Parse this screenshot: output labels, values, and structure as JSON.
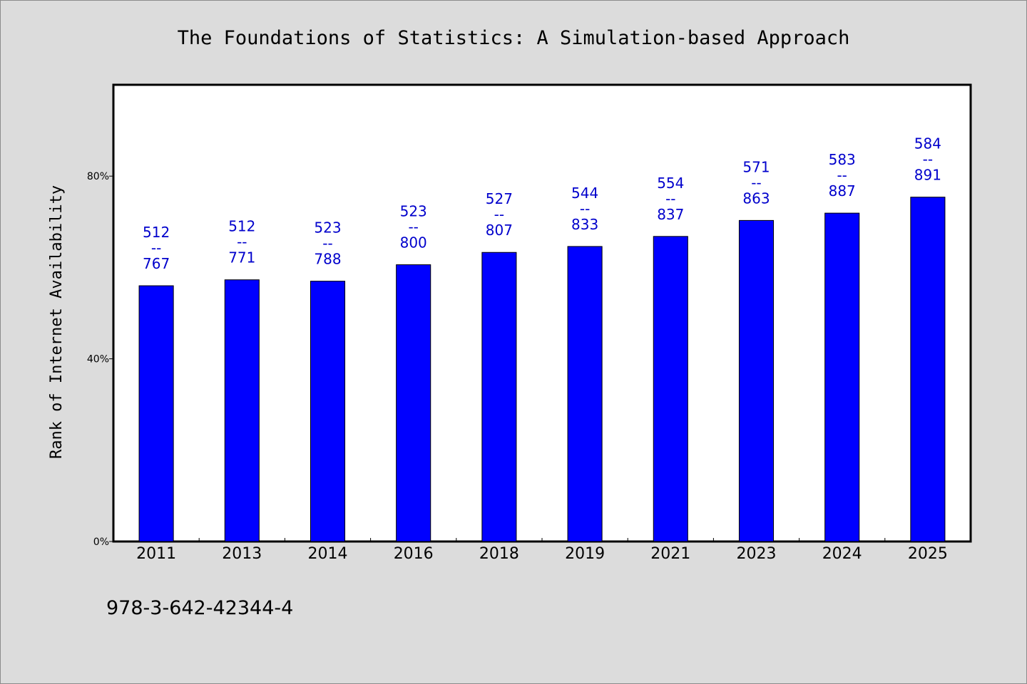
{
  "chart_data": {
    "type": "bar",
    "title": "The Foundations of Statistics: A Simulation-based Approach",
    "ylabel": "Rank of Internet Availability",
    "xlabel": "",
    "footnote": "978-3-642-42344-4",
    "categories": [
      "2011",
      "2013",
      "2014",
      "2016",
      "2018",
      "2019",
      "2021",
      "2023",
      "2024",
      "2025"
    ],
    "values": [
      0.6675,
      0.6641,
      0.6637,
      0.6538,
      0.653,
      0.6531,
      0.6619,
      0.6616,
      0.6573,
      0.6554
    ],
    "numerators": [
      512,
      512,
      523,
      523,
      527,
      544,
      554,
      571,
      583,
      584
    ],
    "denominators": [
      767,
      771,
      788,
      800,
      807,
      833,
      837,
      863,
      887,
      891
    ],
    "data_labels": [
      {
        "top": "512",
        "sep": "--",
        "bottom": "767"
      },
      {
        "top": "512",
        "sep": "--",
        "bottom": "771"
      },
      {
        "top": "523",
        "sep": "--",
        "bottom": "788"
      },
      {
        "top": "523",
        "sep": "--",
        "bottom": "800"
      },
      {
        "top": "527",
        "sep": "--",
        "bottom": "807"
      },
      {
        "top": "544",
        "sep": "--",
        "bottom": "833"
      },
      {
        "top": "554",
        "sep": "--",
        "bottom": "837"
      },
      {
        "top": "571",
        "sep": "--",
        "bottom": "863"
      },
      {
        "top": "583",
        "sep": "--",
        "bottom": "887"
      },
      {
        "top": "584",
        "sep": "--",
        "bottom": "891"
      }
    ],
    "bar_values_percent": [
      56.0,
      57.3,
      57.0,
      60.6,
      63.3,
      64.6,
      66.8,
      70.3,
      71.9,
      75.4
    ],
    "yticks": [
      "0%",
      "40%",
      "80%"
    ],
    "ytick_values": [
      0,
      40,
      80
    ],
    "ylim": [
      0,
      100
    ],
    "grid": false,
    "legend": "none",
    "colors": {
      "bar": "#0000ff",
      "bar_edge": "#000000",
      "label": "#0000cc",
      "background": "#dcdcdc",
      "plot_background": "#ffffff",
      "axis": "#000000"
    }
  }
}
